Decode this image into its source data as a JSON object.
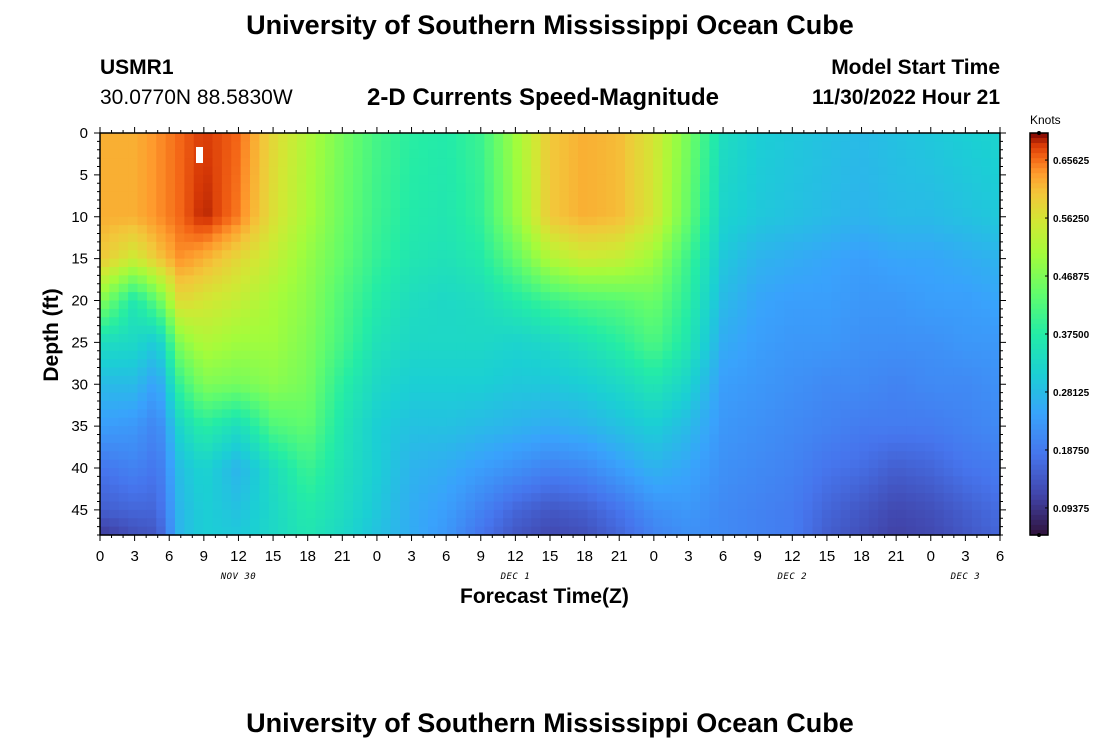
{
  "header": {
    "title": "University of Southern Mississippi Ocean Cube",
    "station_id": "USMR1",
    "station_coords": "30.0770N  88.5830W",
    "subtitle": "2-D Currents Speed-Magnitude",
    "model_start_label": "Model Start Time",
    "model_start_value": "11/30/2022 Hour 21",
    "footer_title": "University of Southern Mississippi Ocean Cube"
  },
  "chart_data": {
    "type": "heatmap",
    "title": "2-D Currents Speed-Magnitude",
    "xlabel": "Forecast Time(Z)",
    "ylabel": "Depth (ft)",
    "x_range_hours": [
      0,
      78
    ],
    "y_range_ft": [
      0,
      48
    ],
    "y_reversed": true,
    "x_ticks": [
      "0",
      "3",
      "6",
      "9",
      "12",
      "15",
      "18",
      "21",
      "0",
      "3",
      "6",
      "9",
      "12",
      "15",
      "18",
      "21",
      "0",
      "3",
      "6",
      "9",
      "12",
      "15",
      "18",
      "21",
      "0",
      "3",
      "6"
    ],
    "y_ticks": [
      "0",
      "5",
      "10",
      "15",
      "20",
      "25",
      "30",
      "35",
      "40",
      "45"
    ],
    "date_labels": [
      {
        "text": "NOV 30",
        "hour": 12
      },
      {
        "text": "DEC 1",
        "hour": 36
      },
      {
        "text": "DEC 2",
        "hour": 60
      },
      {
        "text": "DEC 3",
        "hour": 75
      }
    ],
    "colorbar": {
      "unit": "Knots",
      "min": 0.05,
      "max": 0.7,
      "ticks": [
        "0.65625",
        "0.56250",
        "0.46875",
        "0.37500",
        "0.28125",
        "0.18750",
        "0.09375"
      ]
    },
    "speed_profiles": {
      "hours": [
        0,
        3,
        5,
        7,
        9,
        12,
        15,
        18,
        21,
        24,
        27,
        30,
        33,
        36,
        39,
        42,
        45,
        48,
        51,
        54,
        57,
        60,
        63,
        66,
        69,
        72,
        75,
        78
      ],
      "depths_ft": [
        0,
        10,
        15,
        20,
        25,
        30,
        35,
        40,
        45,
        48
      ],
      "values_knots": [
        [
          0.62,
          0.62,
          0.64,
          0.66,
          0.68,
          0.66,
          0.58,
          0.52,
          0.46,
          0.41,
          0.38,
          0.37,
          0.4,
          0.5,
          0.6,
          0.62,
          0.61,
          0.56,
          0.46,
          0.34,
          0.31,
          0.3,
          0.29,
          0.28,
          0.29,
          0.3,
          0.31,
          0.32
        ],
        [
          0.62,
          0.62,
          0.64,
          0.66,
          0.69,
          0.65,
          0.57,
          0.51,
          0.45,
          0.4,
          0.37,
          0.36,
          0.39,
          0.49,
          0.6,
          0.62,
          0.61,
          0.56,
          0.44,
          0.32,
          0.3,
          0.29,
          0.28,
          0.27,
          0.28,
          0.28,
          0.29,
          0.3
        ],
        [
          0.6,
          0.55,
          0.6,
          0.64,
          0.62,
          0.58,
          0.54,
          0.49,
          0.44,
          0.39,
          0.36,
          0.35,
          0.37,
          0.44,
          0.52,
          0.55,
          0.54,
          0.5,
          0.4,
          0.3,
          0.27,
          0.26,
          0.25,
          0.24,
          0.25,
          0.25,
          0.26,
          0.27
        ],
        [
          0.48,
          0.36,
          0.44,
          0.58,
          0.56,
          0.54,
          0.51,
          0.48,
          0.42,
          0.37,
          0.34,
          0.33,
          0.34,
          0.37,
          0.4,
          0.42,
          0.43,
          0.45,
          0.38,
          0.28,
          0.25,
          0.24,
          0.24,
          0.23,
          0.23,
          0.24,
          0.24,
          0.25
        ],
        [
          0.34,
          0.33,
          0.3,
          0.48,
          0.52,
          0.5,
          0.5,
          0.47,
          0.41,
          0.35,
          0.33,
          0.33,
          0.33,
          0.32,
          0.33,
          0.35,
          0.38,
          0.42,
          0.36,
          0.26,
          0.24,
          0.23,
          0.23,
          0.22,
          0.22,
          0.22,
          0.23,
          0.23
        ],
        [
          0.28,
          0.28,
          0.24,
          0.4,
          0.47,
          0.46,
          0.48,
          0.46,
          0.38,
          0.33,
          0.31,
          0.31,
          0.31,
          0.3,
          0.3,
          0.31,
          0.33,
          0.36,
          0.32,
          0.24,
          0.23,
          0.22,
          0.21,
          0.21,
          0.2,
          0.21,
          0.21,
          0.22
        ],
        [
          0.24,
          0.23,
          0.2,
          0.33,
          0.38,
          0.34,
          0.42,
          0.44,
          0.36,
          0.31,
          0.29,
          0.29,
          0.28,
          0.27,
          0.26,
          0.27,
          0.29,
          0.31,
          0.28,
          0.23,
          0.22,
          0.21,
          0.2,
          0.19,
          0.19,
          0.19,
          0.2,
          0.21
        ],
        [
          0.18,
          0.2,
          0.18,
          0.29,
          0.32,
          0.27,
          0.34,
          0.4,
          0.35,
          0.31,
          0.27,
          0.26,
          0.24,
          0.22,
          0.2,
          0.21,
          0.24,
          0.27,
          0.25,
          0.22,
          0.21,
          0.2,
          0.18,
          0.17,
          0.15,
          0.16,
          0.18,
          0.19
        ],
        [
          0.15,
          0.16,
          0.16,
          0.28,
          0.31,
          0.29,
          0.33,
          0.37,
          0.34,
          0.3,
          0.26,
          0.24,
          0.2,
          0.16,
          0.14,
          0.15,
          0.18,
          0.22,
          0.23,
          0.21,
          0.2,
          0.19,
          0.16,
          0.14,
          0.12,
          0.13,
          0.15,
          0.17
        ],
        [
          0.1,
          0.13,
          0.14,
          0.28,
          0.31,
          0.3,
          0.33,
          0.36,
          0.33,
          0.29,
          0.26,
          0.23,
          0.18,
          0.14,
          0.12,
          0.13,
          0.16,
          0.2,
          0.22,
          0.21,
          0.2,
          0.19,
          0.15,
          0.13,
          0.11,
          0.12,
          0.14,
          0.16
        ]
      ]
    }
  },
  "colors": {
    "frame": "#000000",
    "marker": "#ffffff"
  }
}
